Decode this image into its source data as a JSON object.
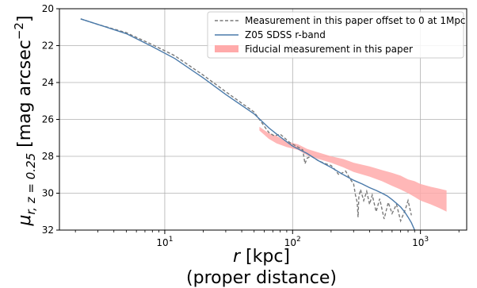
{
  "chart_data": {
    "type": "line",
    "xlabel": "r [kpc]",
    "xlabel_line2": "(proper distance)",
    "ylabel": "μr,z=0.25 [mag arcsec−2]",
    "ylabel_parts": {
      "mu": "μ",
      "sub": "r, z = 0.25",
      "unit_open": " [mag arcsec",
      "sup": "−2",
      "unit_close": "]"
    },
    "x_scale": "log",
    "xlim": [
      1.5,
      2300
    ],
    "ylim": [
      32,
      20
    ],
    "y_inverted": true,
    "grid": true,
    "legend_position": "top-right",
    "x_tick_base": "10",
    "x_ticks": [
      {
        "value": 10,
        "exp": "1"
      },
      {
        "value": 100,
        "exp": "2"
      },
      {
        "value": 1000,
        "exp": "3"
      }
    ],
    "y_ticks": [
      {
        "value": 20,
        "label": "20"
      },
      {
        "value": 22,
        "label": "22"
      },
      {
        "value": 24,
        "label": "24"
      },
      {
        "value": 26,
        "label": "26"
      },
      {
        "value": 28,
        "label": "28"
      },
      {
        "value": 30,
        "label": "30"
      },
      {
        "value": 32,
        "label": "32"
      }
    ],
    "series": [
      {
        "name": "Measurement in this paper offset to 0 at 1Mpc",
        "style": "dashed",
        "color": "#7a7a7a",
        "x": [
          2.2,
          3,
          5,
          8,
          12,
          20,
          30,
          50,
          65,
          72,
          80,
          95,
          110,
          120,
          125,
          130,
          140,
          160,
          180,
          200,
          210,
          230,
          260,
          280,
          300,
          310,
          320,
          325,
          330,
          340,
          360,
          380,
          400,
          420,
          450,
          480,
          520,
          560,
          600,
          650,
          700,
          760,
          800,
          850
        ],
        "y": [
          20.55,
          20.85,
          21.3,
          21.95,
          22.55,
          23.6,
          24.5,
          25.6,
          26.7,
          26.9,
          26.8,
          27.25,
          27.5,
          27.65,
          28.4,
          28.1,
          28.0,
          28.25,
          28.4,
          28.5,
          28.65,
          29.0,
          28.8,
          29.2,
          29.5,
          30.1,
          30.5,
          31.3,
          30.2,
          29.8,
          30.4,
          29.9,
          30.6,
          30.1,
          31.0,
          30.3,
          31.4,
          30.5,
          31.1,
          30.6,
          31.5,
          30.9,
          30.4,
          31.2
        ]
      },
      {
        "name": "Z05 SDSS r-band",
        "style": "solid",
        "color": "#4a7aaa",
        "x": [
          2.2,
          3,
          5,
          8,
          12,
          20,
          30,
          50,
          65,
          80,
          100,
          130,
          160,
          200,
          250,
          300,
          350,
          400,
          450,
          500,
          550,
          600,
          650,
          700,
          750,
          800,
          850,
          900
        ],
        "y": [
          20.55,
          20.85,
          21.35,
          22.05,
          22.7,
          23.75,
          24.65,
          25.7,
          26.45,
          26.95,
          27.45,
          27.85,
          28.25,
          28.6,
          29.0,
          29.3,
          29.5,
          29.7,
          29.85,
          30.0,
          30.15,
          30.35,
          30.55,
          30.75,
          31.0,
          31.3,
          31.6,
          32.0
        ]
      },
      {
        "name": "Fiducial measurement in this paper",
        "style": "band",
        "color": "#ffaaaa",
        "x": [
          55,
          65,
          75,
          90,
          110,
          130,
          160,
          200,
          250,
          300,
          400,
          500,
          600,
          700,
          800,
          900,
          1000,
          1200,
          1400,
          1600
        ],
        "y_low": [
          26.4,
          26.75,
          26.9,
          27.2,
          27.35,
          27.6,
          27.8,
          28.0,
          28.15,
          28.35,
          28.55,
          28.75,
          28.9,
          29.05,
          29.25,
          29.35,
          29.5,
          29.65,
          29.75,
          29.85
        ],
        "y_high": [
          26.6,
          27.05,
          27.3,
          27.5,
          27.65,
          27.95,
          28.15,
          28.35,
          28.6,
          28.85,
          29.1,
          29.35,
          29.6,
          29.8,
          30.0,
          30.2,
          30.4,
          30.6,
          30.8,
          31.0
        ]
      }
    ]
  }
}
